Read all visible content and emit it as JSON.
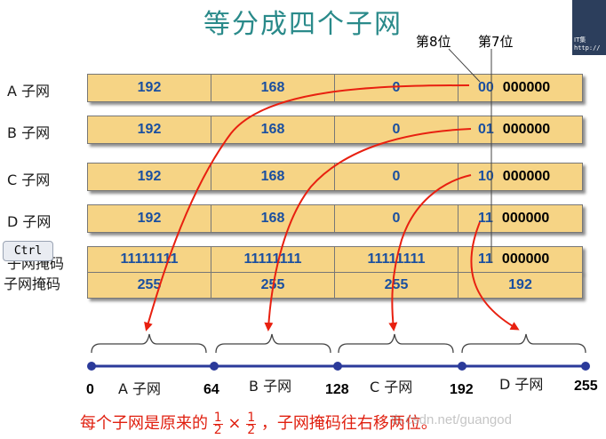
{
  "title": "等分成四个子网",
  "bit_labels": {
    "bit8": "第8位",
    "bit7": "第7位"
  },
  "rows": [
    {
      "label": "A 子网",
      "octets": [
        "192",
        "168",
        "0"
      ],
      "high_bits": "00",
      "low_bits": "000000"
    },
    {
      "label": "B 子网",
      "octets": [
        "192",
        "168",
        "0"
      ],
      "high_bits": "01",
      "low_bits": "000000"
    },
    {
      "label": "C 子网",
      "octets": [
        "192",
        "168",
        "0"
      ],
      "high_bits": "10",
      "low_bits": "000000"
    },
    {
      "label": "D 子网",
      "octets": [
        "192",
        "168",
        "0"
      ],
      "high_bits": "11",
      "low_bits": "000000"
    }
  ],
  "mask_binary": {
    "label": "子网掩码",
    "octets": [
      "11111111",
      "11111111",
      "11111111"
    ],
    "high_bits": "11",
    "low_bits": "000000"
  },
  "mask_decimal": {
    "label": "子网掩码",
    "octets": [
      "255",
      "255",
      "255",
      "192"
    ]
  },
  "tooltip_key": "Ctrl",
  "corner_thumb": {
    "line1": "IT集",
    "line2": "http://"
  },
  "axis": {
    "ticks": [
      "0",
      "64",
      "128",
      "192",
      "255"
    ],
    "segments": [
      "A 子网",
      "B 子网",
      "C 子网",
      "D 子网"
    ]
  },
  "footer": {
    "prefix": "每个子网是原来的",
    "frac1_num": "1",
    "frac1_den": "2",
    "times": "×",
    "frac2_num": "1",
    "frac2_den": "2",
    "suffix": "，子网掩码往右移两位。"
  },
  "watermark": "tb.csdn.net/guangod",
  "colors": {
    "bar_fill": "#f6d485",
    "arrow": "#e82010",
    "axis": "#2b3a9a",
    "title": "#2a8a8a"
  }
}
